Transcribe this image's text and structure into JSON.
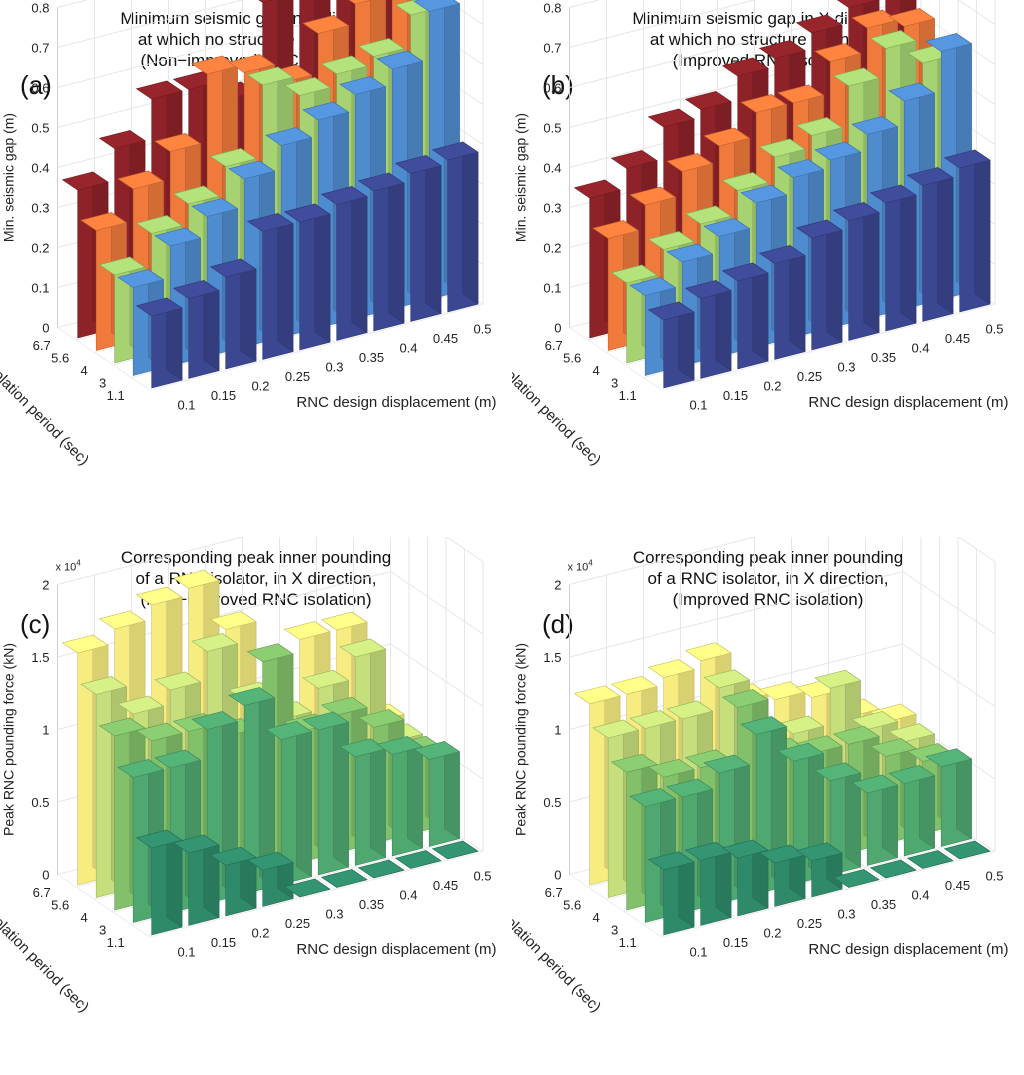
{
  "chart_data": [
    {
      "id": "a",
      "type": "bar3d",
      "panel_label": "(a)",
      "title": [
        "Minimum seismic gap in X direction,",
        "at which no structure pounding,",
        "(Non−improved RNC isolation)"
      ],
      "xlabel": "RNC design displacement (m)",
      "ylabel": "Isolation period (sec)",
      "zlabel": "Min. seismic gap (m)",
      "z_multiplier": "",
      "x": [
        "0.1",
        "0.15",
        "0.2",
        "0.25",
        "0.3",
        "0.35",
        "0.4",
        "0.45",
        "0.5"
      ],
      "y": [
        "1.1",
        "3",
        "4",
        "5.6",
        "6.7"
      ],
      "zlim": [
        0,
        0.8
      ],
      "zticks": [
        "0",
        "0.1",
        "0.2",
        "0.3",
        "0.4",
        "0.5",
        "0.6",
        "0.7",
        "0.8"
      ],
      "zticks_values": [
        0,
        0.1,
        0.2,
        0.3,
        0.4,
        0.5,
        0.6,
        0.7,
        0.8
      ],
      "grid": true,
      "series": [
        {
          "name": "1.1",
          "color": "#3b4790",
          "values": [
            0.18,
            0.2,
            0.23,
            0.32,
            0.32,
            0.34,
            0.35,
            0.37,
            0.38
          ]
        },
        {
          "name": "3",
          "color": "#4f8ccf",
          "values": [
            0.22,
            0.3,
            0.35,
            0.42,
            0.48,
            0.52,
            0.56,
            0.6,
            0.72
          ]
        },
        {
          "name": "4",
          "color": "#a6d271",
          "values": [
            0.22,
            0.3,
            0.35,
            0.42,
            0.6,
            0.55,
            0.58,
            0.6,
            0.68
          ]
        },
        {
          "name": "5.6",
          "color": "#ef7a3b",
          "values": [
            0.3,
            0.38,
            0.45,
            0.62,
            0.6,
            0.55,
            0.65,
            0.7,
            0.72
          ]
        },
        {
          "name": "6.7",
          "color": "#8e2229",
          "values": [
            0.37,
            0.45,
            0.55,
            0.55,
            0.5,
            0.72,
            0.72,
            0.76,
            0.82
          ]
        }
      ]
    },
    {
      "id": "b",
      "type": "bar3d",
      "panel_label": "(b)",
      "title": [
        "Minimum seismic gap in X direction,",
        "at which no structure pounding,",
        "(Improved RNC isolation)"
      ],
      "xlabel": "RNC design displacement (m)",
      "ylabel": "Isolation period (sec)",
      "zlabel": "Min. seismic gap (m)",
      "z_multiplier": "",
      "x": [
        "0.1",
        "0.15",
        "0.2",
        "0.25",
        "0.3",
        "0.35",
        "0.4",
        "0.45",
        "0.5"
      ],
      "y": [
        "1.1",
        "3",
        "4",
        "5.6",
        "6.7"
      ],
      "zlim": [
        0,
        0.8
      ],
      "zticks": [
        "0",
        "0.1",
        "0.2",
        "0.3",
        "0.4",
        "0.5",
        "0.6",
        "0.7",
        "0.8"
      ],
      "zticks_values": [
        0,
        0.1,
        0.2,
        0.3,
        0.4,
        0.5,
        0.6,
        0.7,
        0.8
      ],
      "grid": true,
      "series": [
        {
          "name": "1.1",
          "color": "#3b4790",
          "values": [
            0.17,
            0.2,
            0.22,
            0.24,
            0.28,
            0.3,
            0.32,
            0.34,
            0.36
          ]
        },
        {
          "name": "3",
          "color": "#4f8ccf",
          "values": [
            0.2,
            0.26,
            0.3,
            0.36,
            0.4,
            0.42,
            0.46,
            0.52,
            0.62
          ]
        },
        {
          "name": "4",
          "color": "#a6d271",
          "values": [
            0.2,
            0.26,
            0.3,
            0.36,
            0.42,
            0.45,
            0.55,
            0.62,
            0.56
          ]
        },
        {
          "name": "5.6",
          "color": "#ef7a3b",
          "values": [
            0.28,
            0.34,
            0.4,
            0.44,
            0.5,
            0.5,
            0.58,
            0.64,
            0.62
          ]
        },
        {
          "name": "6.7",
          "color": "#8e2229",
          "values": [
            0.35,
            0.4,
            0.48,
            0.5,
            0.56,
            0.58,
            0.62,
            0.66,
            0.72
          ]
        }
      ]
    },
    {
      "id": "c",
      "type": "bar3d",
      "panel_label": "(c)",
      "title": [
        "Corresponding peak inner pounding",
        "of a RNC isolator, in X direction,",
        "(Non−improved RNC isolation)"
      ],
      "xlabel": "RNC design displacement (m)",
      "ylabel": "Isolation period (sec)",
      "zlabel": "Peak RNC pounding force (kN)",
      "z_multiplier": "x 10",
      "z_exponent": "4",
      "x": [
        "0.1",
        "0.15",
        "0.2",
        "0.25",
        "0.3",
        "0.35",
        "0.4",
        "0.45",
        "0.5"
      ],
      "y": [
        "1.1",
        "3",
        "4",
        "5.6",
        "6.7"
      ],
      "zlim": [
        0,
        2
      ],
      "zticks": [
        "0",
        "0.5",
        "1",
        "1.5",
        "2"
      ],
      "zticks_values": [
        0,
        0.5,
        1,
        1.5,
        2
      ],
      "grid": true,
      "series": [
        {
          "name": "1.1",
          "color": "#2f8a6a",
          "values": [
            0.6,
            0.5,
            0.35,
            0.25,
            0.0,
            0.0,
            0.0,
            0.0,
            0.0
          ]
        },
        {
          "name": "3",
          "color": "#4fa870",
          "values": [
            1.0,
            1.0,
            1.2,
            1.3,
            1.0,
            1.0,
            0.75,
            0.7,
            0.6
          ]
        },
        {
          "name": "4",
          "color": "#82c06a",
          "values": [
            1.2,
            1.1,
            1.1,
            1.0,
            1.45,
            0.9,
            0.95,
            0.8,
            0.55
          ]
        },
        {
          "name": "5.6",
          "color": "#c6df7c",
          "values": [
            1.4,
            1.2,
            1.3,
            1.5,
            1.1,
            0.9,
            1.05,
            1.2,
            0.55
          ]
        },
        {
          "name": "6.7",
          "color": "#f7ec80",
          "values": [
            1.6,
            1.7,
            1.8,
            1.85,
            1.5,
            0.9,
            1.3,
            1.3,
            0.6
          ]
        }
      ]
    },
    {
      "id": "d",
      "type": "bar3d",
      "panel_label": "(d)",
      "title": [
        "Corresponding peak inner pounding",
        "of a RNC isolator, in X direction,",
        "(Improved RNC isolation)"
      ],
      "xlabel": "RNC design displacement (m)",
      "ylabel": "Isolation period (sec)",
      "zlabel": "Peak RNC pounding force (kN)",
      "z_multiplier": "x 10",
      "z_exponent": "4",
      "x": [
        "0.1",
        "0.15",
        "0.2",
        "0.25",
        "0.3",
        "0.35",
        "0.4",
        "0.45",
        "0.5"
      ],
      "y": [
        "1.1",
        "3",
        "4",
        "5.6",
        "6.7"
      ],
      "zlim": [
        0,
        2
      ],
      "zticks": [
        "0",
        "0.5",
        "1",
        "1.5",
        "2"
      ],
      "zticks_values": [
        0,
        0.5,
        1,
        1.5,
        2
      ],
      "grid": true,
      "series": [
        {
          "name": "1.1",
          "color": "#2f8a6a",
          "values": [
            0.45,
            0.45,
            0.4,
            0.3,
            0.25,
            0.0,
            0.0,
            0.0,
            0.0
          ]
        },
        {
          "name": "3",
          "color": "#4fa870",
          "values": [
            0.8,
            0.8,
            0.9,
            1.1,
            0.85,
            0.65,
            0.5,
            0.5,
            0.55
          ]
        },
        {
          "name": "4",
          "color": "#82c06a",
          "values": [
            0.95,
            0.85,
            0.85,
            1.2,
            0.8,
            0.75,
            0.75,
            0.6,
            0.5
          ]
        },
        {
          "name": "5.6",
          "color": "#c6df7c",
          "values": [
            1.1,
            1.1,
            1.1,
            1.25,
            0.85,
            0.8,
            1.05,
            0.7,
            0.55
          ]
        },
        {
          "name": "6.7",
          "color": "#f7ec80",
          "values": [
            1.25,
            1.25,
            1.3,
            1.35,
            1.0,
            0.95,
            0.9,
            0.7,
            0.6
          ]
        }
      ]
    }
  ]
}
